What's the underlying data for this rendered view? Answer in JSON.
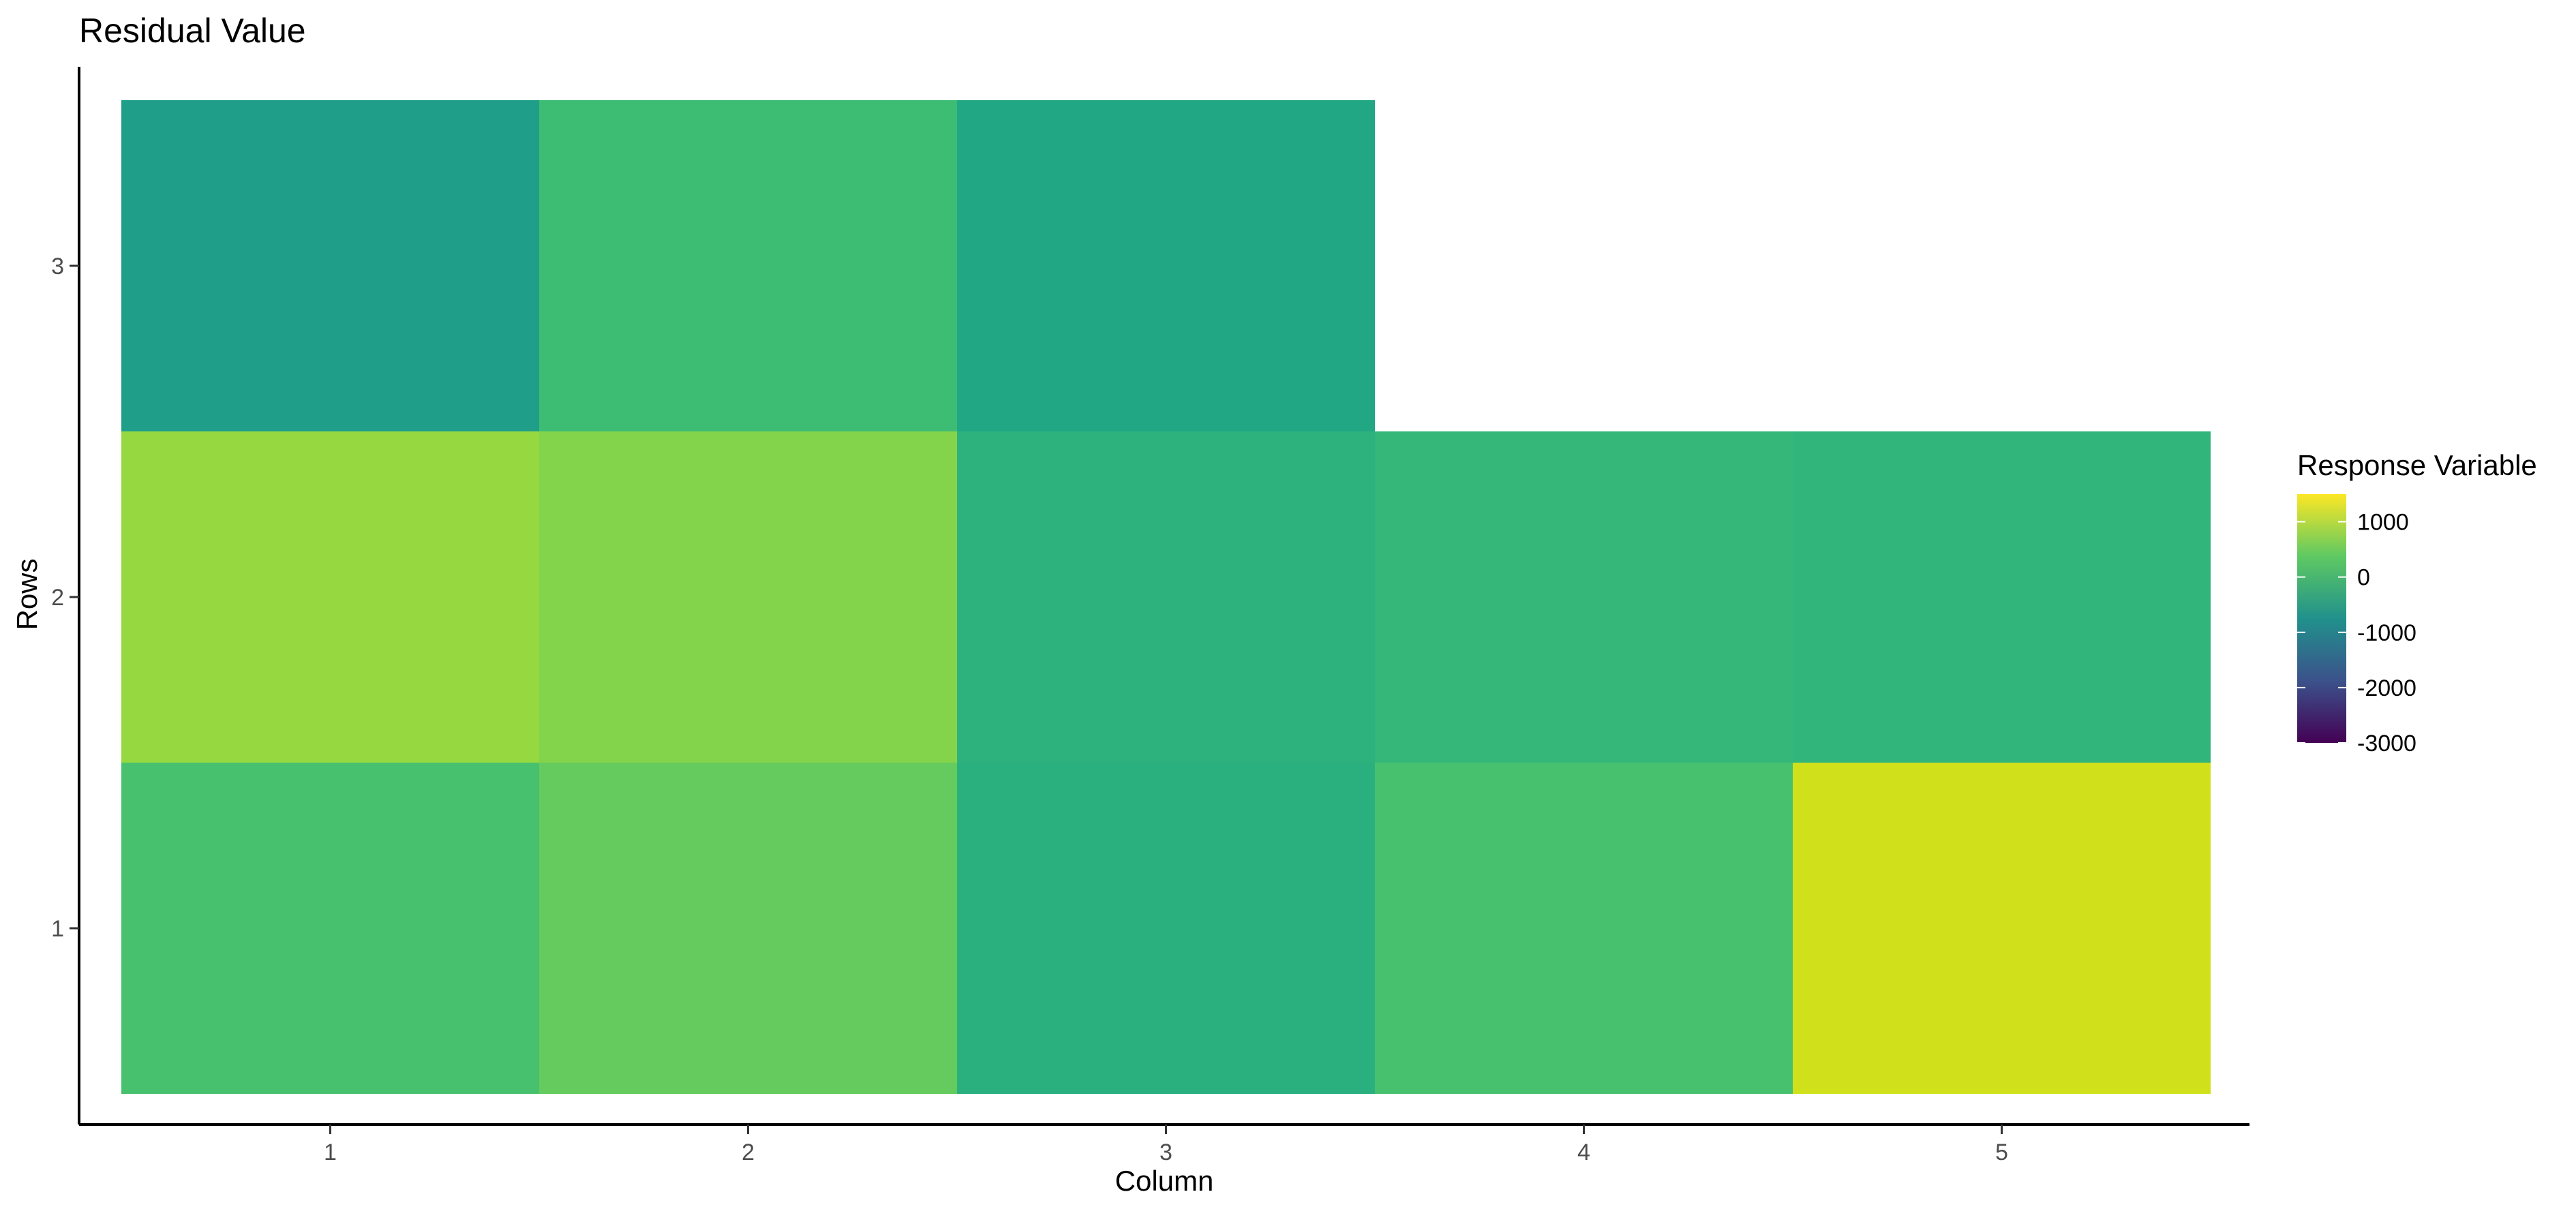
{
  "chart_data": {
    "type": "heatmap",
    "title": "Residual Value",
    "xlabel": "Column",
    "ylabel": "Rows",
    "x_ticks": [
      "1",
      "2",
      "3",
      "4",
      "5"
    ],
    "y_ticks": [
      "1",
      "2",
      "3"
    ],
    "cells": [
      {
        "col": 1,
        "row": 1,
        "value": 250,
        "color": "#47c16e"
      },
      {
        "col": 2,
        "row": 1,
        "value": 550,
        "color": "#65cb5e"
      },
      {
        "col": 3,
        "row": 1,
        "value": -550,
        "color": "#2ab07f"
      },
      {
        "col": 4,
        "row": 1,
        "value": 250,
        "color": "#47c16e"
      },
      {
        "col": 5,
        "row": 1,
        "value": 1450,
        "color": "#d0e11c"
      },
      {
        "col": 1,
        "row": 2,
        "value": 1050,
        "color": "#95d840"
      },
      {
        "col": 2,
        "row": 2,
        "value": 800,
        "color": "#84d44b"
      },
      {
        "col": 3,
        "row": 2,
        "value": -400,
        "color": "#2db27d"
      },
      {
        "col": 4,
        "row": 2,
        "value": -150,
        "color": "#35b779"
      },
      {
        "col": 5,
        "row": 2,
        "value": -250,
        "color": "#31b57b"
      },
      {
        "col": 1,
        "row": 3,
        "value": -1050,
        "color": "#1f9e89"
      },
      {
        "col": 2,
        "row": 3,
        "value": 0,
        "color": "#3dbc74"
      },
      {
        "col": 3,
        "row": 3,
        "value": -900,
        "color": "#22a785"
      }
    ],
    "legend": {
      "title": "Response Variable",
      "position": "right",
      "range": [
        -3000,
        1500
      ],
      "ticks": [
        {
          "value": 1000,
          "label": "1000"
        },
        {
          "value": 0,
          "label": "0"
        },
        {
          "value": -1000,
          "label": "-1000"
        },
        {
          "value": -2000,
          "label": "-2000"
        },
        {
          "value": -3000,
          "label": "-3000"
        }
      ],
      "colormap": [
        "#440154",
        "#3b528b",
        "#21918c",
        "#5ec962",
        "#fde725"
      ]
    },
    "grid": false
  }
}
